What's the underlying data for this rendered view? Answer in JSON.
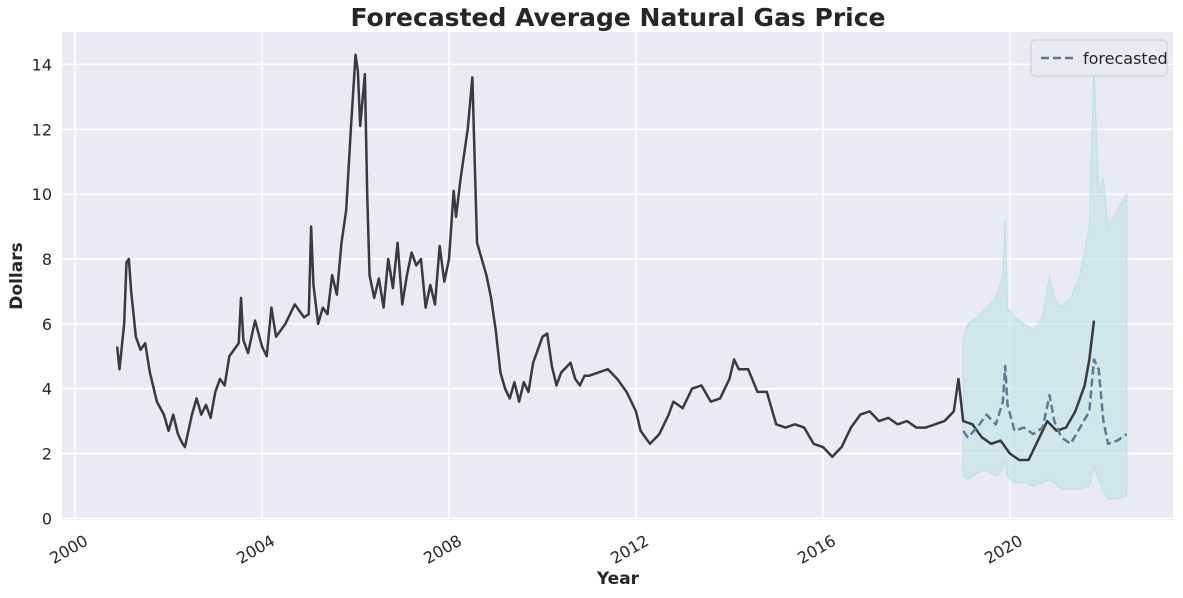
{
  "chart_data": {
    "type": "line",
    "title": "Forecasted Average Natural Gas Price",
    "x_label": "Year",
    "y_label": "Dollars",
    "xlim": [
      1999.72,
      2023.49
    ],
    "ylim": [
      -0.05,
      15.0
    ],
    "xticks": [
      2000,
      2004,
      2008,
      2012,
      2016,
      2020
    ],
    "yticks": [
      0,
      2,
      4,
      6,
      8,
      10,
      12,
      14
    ],
    "grid": true,
    "legend": "upper right",
    "series": [
      {
        "color": "#3a3a3a",
        "dash": false,
        "x": [
          2000.9,
          2000.95,
          2001.05,
          2001.1,
          2001.15,
          2001.2,
          2001.3,
          2001.4,
          2001.5,
          2001.6,
          2001.75,
          2001.9,
          2002.0,
          2002.1,
          2002.2,
          2002.3,
          2002.35,
          2002.5,
          2002.6,
          2002.7,
          2002.8,
          2002.9,
          2003.0,
          2003.1,
          2003.2,
          2003.3,
          2003.4,
          2003.5,
          2003.55,
          2003.6,
          2003.7,
          2003.85,
          2004.0,
          2004.1,
          2004.2,
          2004.3,
          2004.5,
          2004.7,
          2004.9,
          2005.0,
          2005.05,
          2005.1,
          2005.2,
          2005.3,
          2005.4,
          2005.5,
          2005.6,
          2005.7,
          2005.8,
          2005.9,
          2006.0,
          2006.05,
          2006.1,
          2006.2,
          2006.25,
          2006.3,
          2006.4,
          2006.5,
          2006.6,
          2006.7,
          2006.8,
          2006.9,
          2007.0,
          2007.1,
          2007.2,
          2007.3,
          2007.4,
          2007.5,
          2007.6,
          2007.7,
          2007.8,
          2007.9,
          2008.0,
          2008.1,
          2008.15,
          2008.25,
          2008.4,
          2008.5,
          2008.55,
          2008.6,
          2008.7,
          2008.8,
          2008.9,
          2009.0,
          2009.1,
          2009.2,
          2009.3,
          2009.4,
          2009.5,
          2009.6,
          2009.7,
          2009.8,
          2009.9,
          2010.0,
          2010.1,
          2010.2,
          2010.3,
          2010.4,
          2010.6,
          2010.7,
          2010.8,
          2010.9,
          2011.0,
          2011.2,
          2011.4,
          2011.6,
          2011.8,
          2012.0,
          2012.1,
          2012.3,
          2012.5,
          2012.7,
          2012.8,
          2012.9,
          2013.0,
          2013.2,
          2013.4,
          2013.6,
          2013.8,
          2014.0,
          2014.1,
          2014.2,
          2014.4,
          2014.6,
          2014.8,
          2015.0,
          2015.2,
          2015.4,
          2015.6,
          2015.8,
          2016.0,
          2016.2,
          2016.4,
          2016.6,
          2016.8,
          2017.0,
          2017.2,
          2017.4,
          2017.6,
          2017.8,
          2018.0,
          2018.2,
          2018.4,
          2018.6,
          2018.8,
          2018.9,
          2019.0,
          2019.2,
          2019.4,
          2019.6,
          2019.8,
          2020.0,
          2020.2,
          2020.4,
          2020.6,
          2020.8,
          2021.0,
          2021.2,
          2021.4,
          2021.6,
          2021.7,
          2021.8
        ],
        "values": [
          5.3,
          4.6,
          6.0,
          7.9,
          8.0,
          7.0,
          5.6,
          5.2,
          5.4,
          4.5,
          3.6,
          3.2,
          2.7,
          3.2,
          2.6,
          2.3,
          2.2,
          3.2,
          3.7,
          3.2,
          3.5,
          3.1,
          3.9,
          4.3,
          4.1,
          5.0,
          5.2,
          5.4,
          6.8,
          5.5,
          5.1,
          6.1,
          5.3,
          5.0,
          6.5,
          5.6,
          6.0,
          6.6,
          6.2,
          6.3,
          9.0,
          7.2,
          6.0,
          6.5,
          6.3,
          7.5,
          6.9,
          8.5,
          9.5,
          12.0,
          14.3,
          13.8,
          12.1,
          13.7,
          10.0,
          7.5,
          6.8,
          7.4,
          6.5,
          8.0,
          7.1,
          8.5,
          6.6,
          7.5,
          8.2,
          7.8,
          8.0,
          6.5,
          7.2,
          6.6,
          8.4,
          7.3,
          8.0,
          10.1,
          9.3,
          10.5,
          12.0,
          13.6,
          11.0,
          8.5,
          8.0,
          7.5,
          6.8,
          5.8,
          4.5,
          4.0,
          3.7,
          4.2,
          3.6,
          4.2,
          3.9,
          4.8,
          5.2,
          5.6,
          5.7,
          4.7,
          4.1,
          4.5,
          4.8,
          4.3,
          4.1,
          4.4,
          4.4,
          4.5,
          4.6,
          4.3,
          3.9,
          3.3,
          2.7,
          2.3,
          2.6,
          3.2,
          3.6,
          3.5,
          3.4,
          4.0,
          4.1,
          3.6,
          3.7,
          4.3,
          4.9,
          4.6,
          4.6,
          3.9,
          3.9,
          2.9,
          2.8,
          2.9,
          2.8,
          2.3,
          2.2,
          1.9,
          2.2,
          2.8,
          3.2,
          3.3,
          3.0,
          3.1,
          2.9,
          3.0,
          2.8,
          2.8,
          2.9,
          3.0,
          3.3,
          4.3,
          3.0,
          2.9,
          2.5,
          2.3,
          2.4,
          2.0,
          1.8,
          1.8,
          2.4,
          3.0,
          2.7,
          2.8,
          3.3,
          4.1,
          4.9,
          6.1
        ]
      },
      {
        "name": "forecasted",
        "color": "#5d7a94",
        "dash": true,
        "x": [
          2019.0,
          2019.1,
          2019.3,
          2019.5,
          2019.7,
          2019.85,
          2019.9,
          2019.95,
          2020.1,
          2020.3,
          2020.5,
          2020.7,
          2020.85,
          2020.95,
          2021.1,
          2021.3,
          2021.5,
          2021.7,
          2021.8,
          2021.9,
          2022.0,
          2022.1,
          2022.3,
          2022.5
        ],
        "values": [
          2.7,
          2.5,
          2.8,
          3.2,
          2.9,
          3.6,
          4.7,
          3.5,
          2.7,
          2.8,
          2.6,
          2.8,
          3.8,
          3.0,
          2.5,
          2.3,
          2.8,
          3.3,
          4.9,
          4.6,
          3.0,
          2.3,
          2.4,
          2.6
        ]
      }
    ],
    "band": {
      "color": "#b8e2e6",
      "x": [
        2019.0,
        2019.1,
        2019.3,
        2019.5,
        2019.7,
        2019.85,
        2019.9,
        2019.95,
        2020.1,
        2020.3,
        2020.5,
        2020.7,
        2020.85,
        2020.95,
        2021.1,
        2021.3,
        2021.5,
        2021.7,
        2021.8,
        2021.9,
        2022.0,
        2022.1,
        2022.3,
        2022.5
      ],
      "upper": [
        5.5,
        6.0,
        6.2,
        6.5,
        6.8,
        7.5,
        9.2,
        6.5,
        6.2,
        6.0,
        5.8,
        6.2,
        7.5,
        6.8,
        6.5,
        6.8,
        7.5,
        9.0,
        14.0,
        10.0,
        10.5,
        9.0,
        9.5,
        10.0
      ],
      "lower": [
        1.3,
        1.2,
        1.4,
        1.5,
        1.3,
        1.5,
        1.8,
        1.3,
        1.1,
        1.1,
        1.0,
        1.1,
        1.2,
        1.1,
        0.9,
        0.9,
        0.9,
        1.0,
        1.6,
        1.2,
        0.8,
        0.6,
        0.6,
        0.7
      ]
    }
  }
}
